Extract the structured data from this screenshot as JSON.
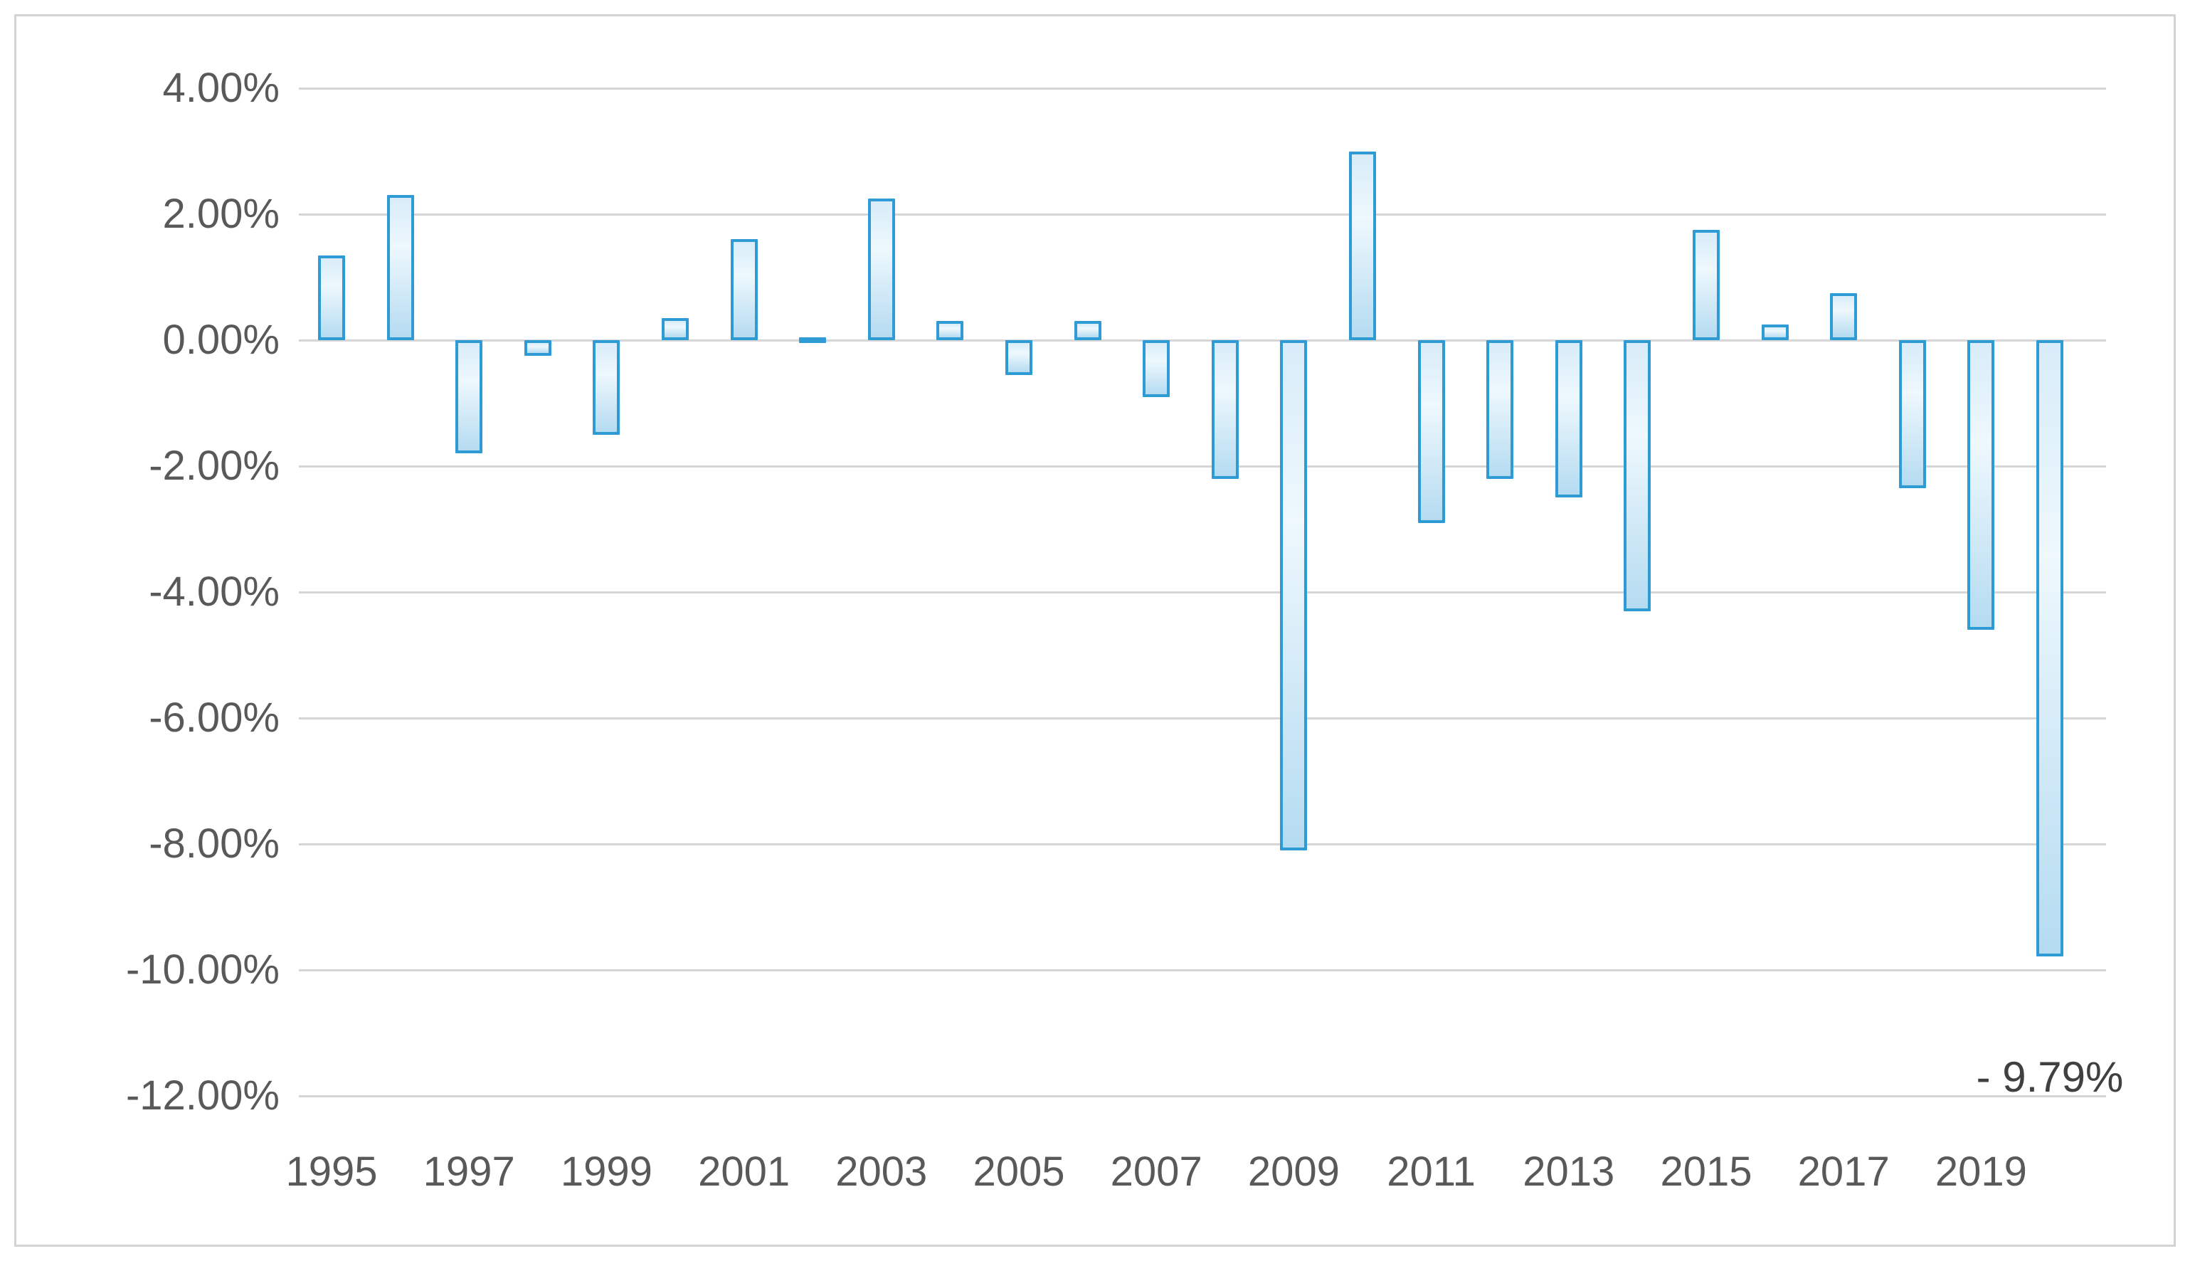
{
  "chart_data": {
    "type": "bar",
    "title": "",
    "xlabel": "",
    "ylabel": "",
    "categories": [
      1995,
      1996,
      1997,
      1998,
      1999,
      2000,
      2001,
      2002,
      2003,
      2004,
      2005,
      2006,
      2007,
      2008,
      2009,
      2010,
      2011,
      2012,
      2013,
      2014,
      2015,
      2016,
      2017,
      2018,
      2019,
      2020
    ],
    "values": [
      1.35,
      2.3,
      -1.8,
      -0.25,
      -1.5,
      0.35,
      1.6,
      0.05,
      2.25,
      0.3,
      -0.55,
      0.3,
      -0.9,
      -2.2,
      -8.1,
      3.0,
      -2.9,
      -2.2,
      -2.5,
      -4.3,
      1.75,
      0.25,
      0.75,
      -2.35,
      -4.6,
      -9.79
    ],
    "value_format": "percent",
    "ylim": [
      -12,
      4
    ],
    "ytick_step": 2,
    "ytick_labels": [
      "4.00%",
      "2.00%",
      "0.00%",
      "-2.00%",
      "-4.00%",
      "-6.00%",
      "-8.00%",
      "-10.00%",
      "-12.00%"
    ],
    "xtick_labels": [
      "1995",
      "1997",
      "1999",
      "2001",
      "2003",
      "2005",
      "2007",
      "2009",
      "2011",
      "2013",
      "2015",
      "2017",
      "2019"
    ],
    "grid": true,
    "legend": false,
    "annotation": {
      "text": "- 9.79%",
      "target_category": 2020
    }
  },
  "colors": {
    "background": "#ffffff",
    "frame_border": "#d3d3d3",
    "gridline": "#d6d6d6",
    "axis_text": "#595959",
    "annotation_text": "#404040",
    "bar_border": "#2e9bd5",
    "bar_fill_light": "#eef8fd",
    "bar_fill_dark": "#b5dbf1"
  }
}
